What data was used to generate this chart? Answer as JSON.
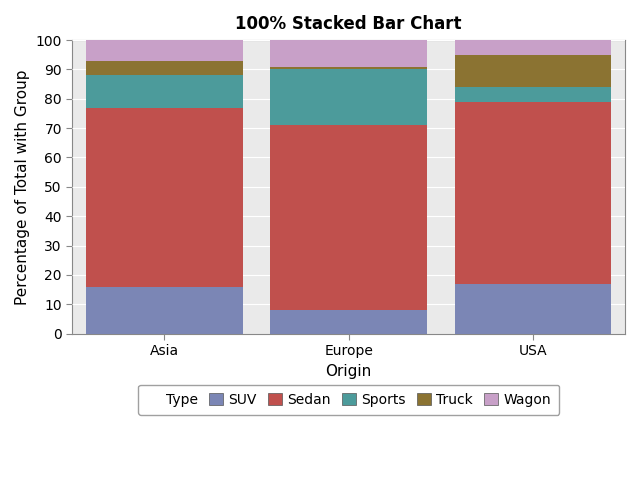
{
  "title": "100% Stacked Bar Chart",
  "xlabel": "Origin",
  "ylabel": "Percentage of Total with Group",
  "categories": [
    "Asia",
    "Europe",
    "USA"
  ],
  "series": {
    "SUV": [
      16,
      8,
      17
    ],
    "Sedan": [
      61,
      63,
      62
    ],
    "Sports": [
      11,
      19,
      5
    ],
    "Truck": [
      5,
      1,
      11
    ],
    "Wagon": [
      7,
      9,
      5
    ]
  },
  "colors": {
    "SUV": "#7b86b5",
    "Sedan": "#c0504d",
    "Sports": "#4c9b9b",
    "Truck": "#8b7332",
    "Wagon": "#c8a0c8"
  },
  "ylim": [
    0,
    100
  ],
  "yticks": [
    0,
    10,
    20,
    30,
    40,
    50,
    60,
    70,
    80,
    90,
    100
  ],
  "bar_width": 0.85,
  "background_color": "#ffffff",
  "plot_bg_color": "#eaeaea",
  "grid_color": "#ffffff",
  "title_fontsize": 12,
  "label_fontsize": 11,
  "tick_fontsize": 10,
  "legend_fontsize": 10
}
